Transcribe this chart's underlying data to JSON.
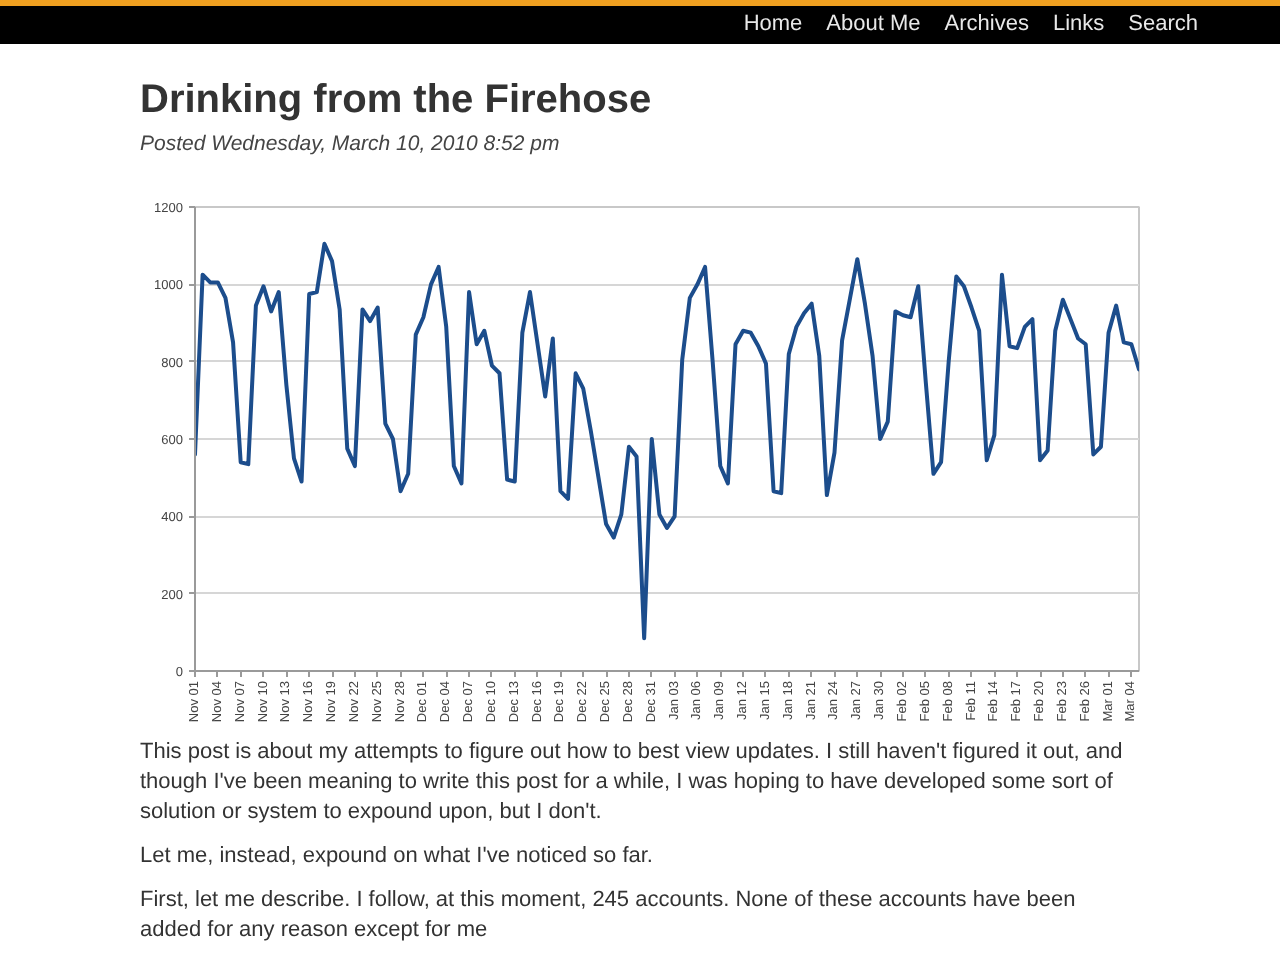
{
  "chart_data": {
    "type": "line",
    "title": "Drinking from the Firehose",
    "subtitle": "Posted Wednesday, March 10, 2010 8:52 pm",
    "x": [
      "2009-11-01",
      "2009-11-02",
      "2009-11-03",
      "2009-11-04",
      "2009-11-05",
      "2009-11-06",
      "2009-11-07",
      "2009-11-08",
      "2009-11-09",
      "2009-11-10",
      "2009-11-11",
      "2009-11-12",
      "2009-11-13",
      "2009-11-14",
      "2009-11-15",
      "2009-11-16",
      "2009-11-17",
      "2009-11-18",
      "2009-11-19",
      "2009-11-20",
      "2009-11-21",
      "2009-11-22",
      "2009-11-23",
      "2009-11-24",
      "2009-11-25",
      "2009-11-26",
      "2009-11-27",
      "2009-11-28",
      "2009-11-29",
      "2009-11-30",
      "2009-12-01",
      "2009-12-02",
      "2009-12-03",
      "2009-12-04",
      "2009-12-05",
      "2009-12-06",
      "2009-12-07",
      "2009-12-08",
      "2009-12-09",
      "2009-12-10",
      "2009-12-11",
      "2009-12-12",
      "2009-12-13",
      "2009-12-14",
      "2009-12-15",
      "2009-12-16",
      "2009-12-17",
      "2009-12-18",
      "2009-12-19",
      "2009-12-20",
      "2009-12-21",
      "2009-12-22",
      "2009-12-23",
      "2009-12-24",
      "2009-12-25",
      "2009-12-26",
      "2009-12-27",
      "2009-12-28",
      "2009-12-29",
      "2009-12-30",
      "2009-12-31",
      "2010-01-01",
      "2010-01-02",
      "2010-01-03",
      "2010-01-04",
      "2010-01-05",
      "2010-01-06",
      "2010-01-07",
      "2010-01-08",
      "2010-01-09",
      "2010-01-10",
      "2010-01-11",
      "2010-01-12",
      "2010-01-13",
      "2010-01-14",
      "2010-01-15",
      "2010-01-16",
      "2010-01-17",
      "2010-01-18",
      "2010-01-19",
      "2010-01-20",
      "2010-01-21",
      "2010-01-22",
      "2010-01-23",
      "2010-01-24",
      "2010-01-25",
      "2010-01-26",
      "2010-01-27",
      "2010-01-28",
      "2010-01-29",
      "2010-01-30",
      "2010-01-31",
      "2010-02-01",
      "2010-02-02",
      "2010-02-03",
      "2010-02-04",
      "2010-02-05",
      "2010-02-06",
      "2010-02-07",
      "2010-02-08",
      "2010-02-09",
      "2010-02-10",
      "2010-02-11",
      "2010-02-12",
      "2010-02-13",
      "2010-02-14",
      "2010-02-15",
      "2010-02-16",
      "2010-02-17",
      "2010-02-18",
      "2010-02-19",
      "2010-02-20",
      "2010-02-21",
      "2010-02-22",
      "2010-02-23",
      "2010-02-24",
      "2010-02-25",
      "2010-02-26",
      "2010-02-27",
      "2010-02-28",
      "2010-03-01",
      "2010-03-02",
      "2010-03-03",
      "2010-03-04",
      "2010-03-05"
    ],
    "series": [
      {
        "color": "#1c4d8c",
        "values": [
          560,
          1025,
          1005,
          1005,
          965,
          850,
          540,
          535,
          945,
          995,
          930,
          980,
          740,
          550,
          490,
          975,
          980,
          1105,
          1060,
          935,
          575,
          530,
          935,
          905,
          940,
          640,
          600,
          465,
          510,
          870,
          915,
          1000,
          1045,
          890,
          530,
          485,
          980,
          845,
          880,
          790,
          770,
          495,
          490,
          875,
          980,
          845,
          710,
          860,
          465,
          445,
          770,
          730,
          620,
          500,
          380,
          345,
          405,
          580,
          555,
          85,
          600,
          405,
          370,
          400,
          805,
          965,
          1000,
          1045,
          800,
          530,
          485,
          845,
          880,
          875,
          840,
          795,
          465,
          460,
          820,
          890,
          925,
          950,
          815,
          455,
          565,
          855,
          960,
          1065,
          950,
          815,
          600,
          645,
          930,
          920,
          915,
          995,
          745,
          510,
          540,
          800,
          1020,
          995,
          940,
          880,
          545,
          610,
          1025,
          840,
          835,
          890,
          910,
          545,
          570,
          880,
          960,
          910,
          860,
          845,
          560,
          580,
          875,
          945,
          850,
          845,
          780
        ]
      }
    ],
    "xlim": [
      "2009-11-01",
      "2010-03-05"
    ],
    "xticks": [
      {
        "value": "2009-11-01",
        "label": "Nov 01"
      },
      {
        "value": "2009-11-04",
        "label": "Nov 04"
      },
      {
        "value": "2009-11-07",
        "label": "Nov 07"
      },
      {
        "value": "2009-11-10",
        "label": "Nov 10"
      },
      {
        "value": "2009-11-13",
        "label": "Nov 13"
      },
      {
        "value": "2009-11-16",
        "label": "Nov 16"
      },
      {
        "value": "2009-11-19",
        "label": "Nov 19"
      },
      {
        "value": "2009-11-22",
        "label": "Nov 22"
      },
      {
        "value": "2009-11-25",
        "label": "Nov 25"
      },
      {
        "value": "2009-11-28",
        "label": "Nov 28"
      },
      {
        "value": "2009-12-01",
        "label": "Dec 01"
      },
      {
        "value": "2009-12-04",
        "label": "Dec 04"
      },
      {
        "value": "2009-12-07",
        "label": "Dec 07"
      },
      {
        "value": "2009-12-10",
        "label": "Dec 10"
      },
      {
        "value": "2009-12-13",
        "label": "Dec 13"
      },
      {
        "value": "2009-12-16",
        "label": "Dec 16"
      },
      {
        "value": "2009-12-19",
        "label": "Dec 19"
      },
      {
        "value": "2009-12-22",
        "label": "Dec 22"
      },
      {
        "value": "2009-12-25",
        "label": "Dec 25"
      },
      {
        "value": "2009-12-28",
        "label": "Dec 28"
      },
      {
        "value": "2009-12-31",
        "label": "Dec 31"
      },
      {
        "value": "2010-01-03",
        "label": "Jan 03"
      },
      {
        "value": "2010-01-06",
        "label": "Jan 06"
      },
      {
        "value": "2010-01-09",
        "label": "Jan 09"
      },
      {
        "value": "2010-01-12",
        "label": "Jan 12"
      },
      {
        "value": "2010-01-15",
        "label": "Jan 15"
      },
      {
        "value": "2010-01-18",
        "label": "Jan 18"
      },
      {
        "value": "2010-01-21",
        "label": "Jan 21"
      },
      {
        "value": "2010-01-24",
        "label": "Jan 24"
      },
      {
        "value": "2010-01-27",
        "label": "Jan 27"
      },
      {
        "value": "2010-01-30",
        "label": "Jan 30"
      },
      {
        "value": "2010-02-02",
        "label": "Feb 02"
      },
      {
        "value": "2010-02-05",
        "label": "Feb 05"
      },
      {
        "value": "2010-02-08",
        "label": "Feb 08"
      },
      {
        "value": "2010-02-11",
        "label": "Feb 11"
      },
      {
        "value": "2010-02-14",
        "label": "Feb 14"
      },
      {
        "value": "2010-02-17",
        "label": "Feb 17"
      },
      {
        "value": "2010-02-20",
        "label": "Feb 20"
      },
      {
        "value": "2010-02-23",
        "label": "Feb 23"
      },
      {
        "value": "2010-02-26",
        "label": "Feb 26"
      },
      {
        "value": "2010-03-01",
        "label": "Mar 01"
      },
      {
        "value": "2010-03-04",
        "label": "Mar 04"
      }
    ],
    "ylim": [
      0,
      1200
    ],
    "yticks": [
      0,
      200,
      400,
      600,
      800,
      1000,
      1200
    ],
    "grid": "y",
    "line_style": "solid",
    "annotations": [
      "Home",
      "About Me",
      "Archives",
      "Links",
      "Search",
      "This post is about my attempts to figure out how to best view updates. I still haven't figured it out, and though I've been meaning to write this post for a while, I was hoping to have developed some sort of solution or system to expound upon, but I don't.",
      "Let me, instead, expound on what I've noticed so far.",
      "First, let me describe. I follow, at this moment, 245 accounts. None of these accounts have been added for any reason except for me"
    ]
  }
}
